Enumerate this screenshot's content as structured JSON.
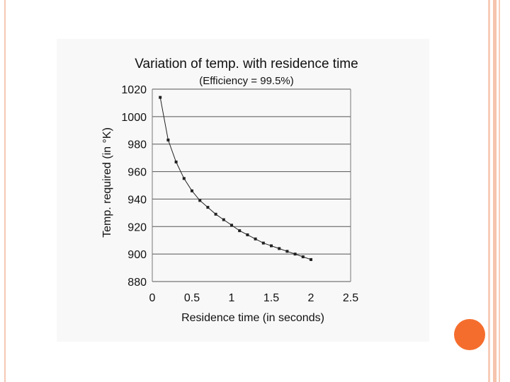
{
  "slide": {
    "accent_color": "#f56d2d",
    "border_color": "#f4c8b4"
  },
  "chart_data": {
    "type": "line",
    "title": "Variation of temp. with residence time",
    "subtitle": "(Efficiency = 99.5%)",
    "xlabel": "Residence time (in seconds)",
    "ylabel": "Temp. required (in °K)",
    "xlim": [
      0,
      2.5
    ],
    "ylim": [
      880,
      1020
    ],
    "xticks": [
      0,
      0.5,
      1,
      1.5,
      2,
      2.5
    ],
    "xtick_labels": [
      "0",
      "0.5",
      "1",
      "1.5",
      "2",
      "2.5"
    ],
    "yticks": [
      880,
      900,
      920,
      940,
      960,
      980,
      1000,
      1020
    ],
    "ytick_labels": [
      "880",
      "900",
      "920",
      "940",
      "960",
      "980",
      "1000",
      "1020"
    ],
    "grid": "horizontal",
    "legend": "none",
    "series": [
      {
        "marker": "square",
        "color": "#222222",
        "points": [
          {
            "x": 0.1,
            "y": 1014
          },
          {
            "x": 0.2,
            "y": 983
          },
          {
            "x": 0.3,
            "y": 967
          },
          {
            "x": 0.4,
            "y": 955
          },
          {
            "x": 0.5,
            "y": 946
          },
          {
            "x": 0.6,
            "y": 939
          },
          {
            "x": 0.7,
            "y": 934
          },
          {
            "x": 0.8,
            "y": 929
          },
          {
            "x": 0.9,
            "y": 925
          },
          {
            "x": 1.0,
            "y": 921
          },
          {
            "x": 1.1,
            "y": 917
          },
          {
            "x": 1.2,
            "y": 914
          },
          {
            "x": 1.3,
            "y": 911
          },
          {
            "x": 1.4,
            "y": 908
          },
          {
            "x": 1.5,
            "y": 906
          },
          {
            "x": 1.6,
            "y": 904
          },
          {
            "x": 1.7,
            "y": 902
          },
          {
            "x": 1.8,
            "y": 900
          },
          {
            "x": 1.9,
            "y": 898
          },
          {
            "x": 2.0,
            "y": 896
          }
        ]
      }
    ]
  }
}
